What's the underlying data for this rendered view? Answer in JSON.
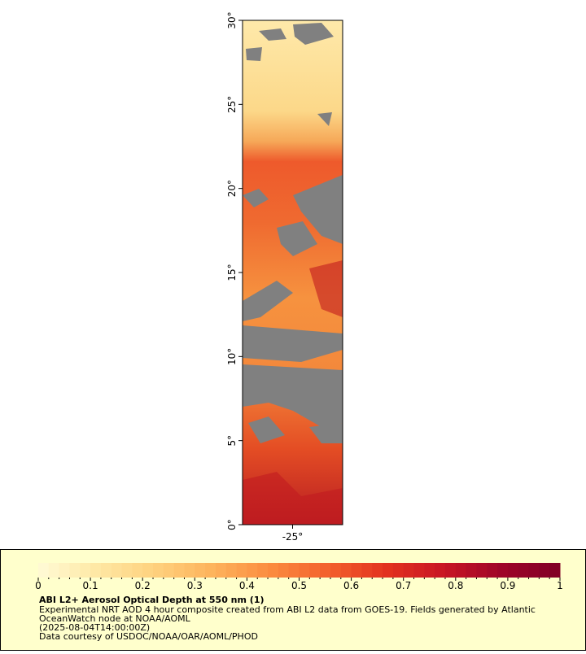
{
  "map": {
    "xlim": [
      -28,
      -22
    ],
    "ylim": [
      0,
      30
    ],
    "lat_ticks": [
      {
        "value": 0,
        "label": "0°"
      },
      {
        "value": 5,
        "label": "5°"
      },
      {
        "value": 10,
        "label": "10°"
      },
      {
        "value": 15,
        "label": "15°"
      },
      {
        "value": 20,
        "label": "20°"
      },
      {
        "value": 25,
        "label": "25°"
      },
      {
        "value": 30,
        "label": "30°"
      }
    ],
    "lon_ticks": [
      {
        "value": -25,
        "label": "-25°"
      }
    ]
  },
  "colorbar": {
    "lim": [
      0,
      1
    ],
    "ticks": [
      0,
      0.1,
      0.2,
      0.3,
      0.4,
      0.5,
      0.6,
      0.7,
      0.8,
      0.9,
      1
    ],
    "colors": [
      "#fffbd6",
      "#fee8a4",
      "#fed17e",
      "#fdb35c",
      "#fb8c3f",
      "#f3602d",
      "#e3321f",
      "#c81524",
      "#9e0429",
      "#800026"
    ]
  },
  "legend": {
    "title": "ABI L2+ Aerosol Optical Depth at 550 nm (1)",
    "lines": [
      "Experimental NRT AOD 4 hour composite created from ABI L2 data from GOES-19. Fields generated by Atlantic",
      "OceanWatch node at NOAA/AOML",
      "(2025-08-04T14:00:00Z)",
      "Data courtesy of USDOC/NOAA/OAR/AOML/PHOD"
    ]
  }
}
